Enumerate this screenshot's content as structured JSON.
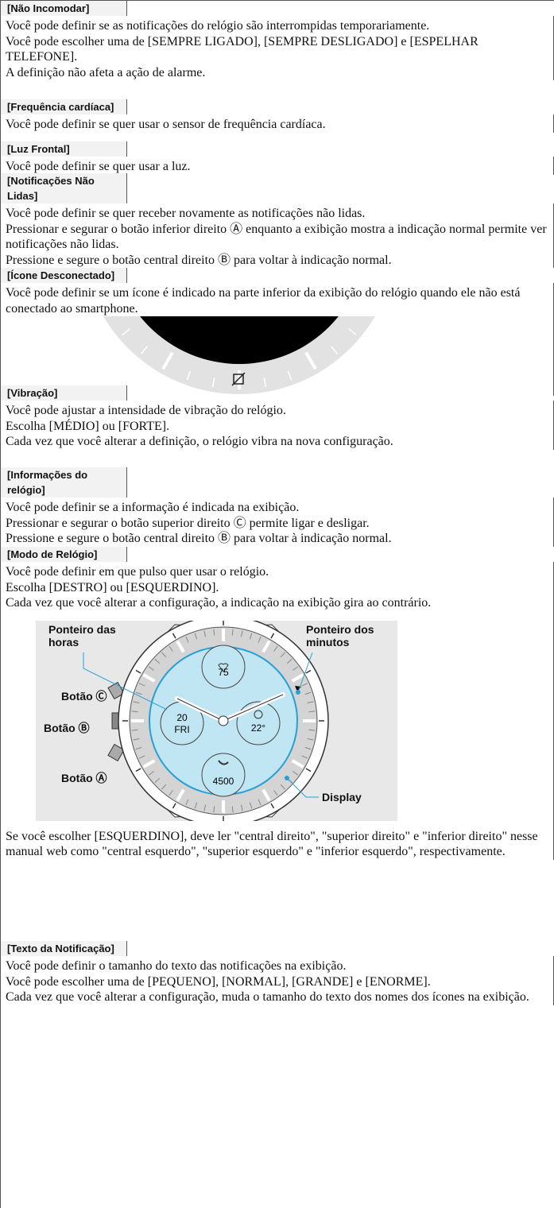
{
  "table": {
    "rows": [
      {
        "label": "[Não Incomodar]",
        "paragraphs": [
          "Você pode definir se as notificações do relógio são interrompidas temporariamente.",
          "Você pode escolher uma de [SEMPRE LIGADO], [SEMPRE DESLIGADO] e [ESPELHAR TELEFONE].",
          "A definição não afeta a ação de alarme."
        ]
      },
      {
        "label": "[Frequência cardíaca]",
        "paragraphs": [
          "Você pode definir se quer usar o sensor de frequência cardíaca."
        ]
      },
      {
        "label": "[Luz Frontal]",
        "paragraphs": [
          "Você pode definir se quer usar a luz."
        ]
      },
      {
        "label": "[Notificações Não Lidas]",
        "paragraphs": [
          "Você pode definir se quer receber novamente as notificações não lidas.",
          "Pressionar e segurar o botão inferior direito Ⓐ enquanto a exibição mostra a indicação normal permite ver notificações não lidas.",
          "Pressione e segure o botão central direito Ⓑ para voltar à indicação normal."
        ]
      },
      {
        "label": "[Ícone Desconectado]",
        "paragraphs": [
          "Você pode definir se um ícone é indicado na parte inferior da exibição do relógio quando ele não está conectado ao smartphone."
        ]
      },
      {
        "label": "[Vibração]",
        "paragraphs": [
          "Você pode ajustar a intensidade de vibração do relógio.",
          "Escolha [MÉDIO] ou [FORTE].",
          "Cada vez que você alterar a definição, o relógio vibra na nova configuração."
        ]
      },
      {
        "label": "[Informações do relógio]",
        "paragraphs": [
          "Você pode definir se a informação é indicada na exibição.",
          "Pressionar e segurar o botão superior direito Ⓒ permite ligar e desligar.",
          "Pressione e segure o botão central direito Ⓑ para voltar à indicação normal."
        ]
      },
      {
        "label": "[Modo de Relógio]",
        "paragraphs": [
          "Você pode definir em que pulso quer usar o relógio.",
          "Escolha [DESTRO] ou [ESQUERDINO].",
          "Cada vez que você alterar a configuração, a indicação na exibição gira ao contrário."
        ],
        "figure": {
          "hour_hand": "Ponteiro das horas",
          "minute_hand": "Ponteiro dos minutos",
          "button_c": "Botão Ⓒ",
          "button_b": "Botão Ⓑ",
          "button_a": "Botão Ⓐ",
          "display": "Display",
          "heart": "75",
          "date": "20",
          "day": "FRI",
          "weather": "22°",
          "steps": "4500"
        },
        "paragraphs_after": [
          "Se você escolher [ESQUERDINO], deve ler \"central direito\", \"superior direito\" e \"inferior direito\" nesse manual web como \"central esquerdo\", \"superior esquerdo\" e \"inferior esquerdo\", respectivamente."
        ]
      },
      {
        "label": "[Texto da Notificação]",
        "paragraphs": [
          "Você pode definir o tamanho do texto das notificações na exibição.",
          "Você pode escolher uma de [PEQUENO], [NORMAL], [GRANDE] e [ENORME].",
          "Cada vez que você alterar a configuração, muda o tamanho do texto dos nomes dos ícones na exibição."
        ]
      }
    ]
  }
}
